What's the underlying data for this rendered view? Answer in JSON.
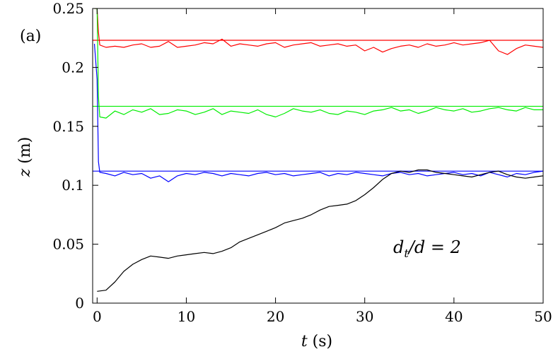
{
  "chart_data": {
    "type": "line",
    "title": "",
    "panel_label": "(a)",
    "xlabel": {
      "var": "t",
      "unit": " (s)"
    },
    "ylabel": {
      "var": "z",
      "unit": " (m)"
    },
    "xlim": [
      -0.5,
      50
    ],
    "ylim": [
      0,
      0.25
    ],
    "xticks": [
      0,
      10,
      20,
      30,
      40,
      50
    ],
    "xtick_labels": [
      "0",
      "10",
      "20",
      "30",
      "40",
      "50"
    ],
    "yticks": [
      0,
      0.05,
      0.1,
      0.15,
      0.2,
      0.25
    ],
    "ytick_labels": [
      "0",
      "0.05",
      "0.1",
      "0.15",
      "0.2",
      "0.25"
    ],
    "grid": false,
    "legend": "none",
    "annotation": {
      "d": "d",
      "sub": "t",
      "rest": "/d = 2"
    },
    "reference_lines": [
      {
        "color": "#ff0000",
        "y": 0.223
      },
      {
        "color": "#00ee00",
        "y": 0.167
      },
      {
        "color": "#0000ff",
        "y": 0.112
      }
    ],
    "series": [
      {
        "color": "#ff0000",
        "x": [
          -0.3,
          0,
          0.15,
          0.3,
          1,
          2,
          3,
          4,
          5,
          6,
          7,
          8,
          9,
          10,
          11,
          12,
          13,
          14,
          15,
          16,
          17,
          18,
          19,
          20,
          21,
          22,
          23,
          24,
          25,
          26,
          27,
          28,
          29,
          30,
          31,
          32,
          33,
          34,
          35,
          36,
          37,
          38,
          39,
          40,
          41,
          42,
          43,
          44,
          45,
          46,
          47,
          48,
          49,
          50
        ],
        "y": [
          0.25,
          0.25,
          0.23,
          0.219,
          0.217,
          0.218,
          0.217,
          0.219,
          0.22,
          0.217,
          0.218,
          0.222,
          0.217,
          0.218,
          0.219,
          0.221,
          0.22,
          0.224,
          0.218,
          0.22,
          0.219,
          0.218,
          0.22,
          0.221,
          0.217,
          0.219,
          0.22,
          0.221,
          0.218,
          0.219,
          0.22,
          0.218,
          0.219,
          0.214,
          0.217,
          0.213,
          0.216,
          0.218,
          0.219,
          0.217,
          0.22,
          0.218,
          0.219,
          0.221,
          0.219,
          0.22,
          0.221,
          0.223,
          0.214,
          0.211,
          0.216,
          0.219,
          0.218,
          0.217
        ]
      },
      {
        "color": "#00ee00",
        "x": [
          -0.3,
          0,
          0.15,
          0.3,
          1,
          2,
          3,
          4,
          5,
          6,
          7,
          8,
          9,
          10,
          11,
          12,
          13,
          14,
          15,
          16,
          17,
          18,
          19,
          20,
          21,
          22,
          23,
          24,
          25,
          26,
          27,
          28,
          29,
          30,
          31,
          32,
          33,
          34,
          35,
          36,
          37,
          38,
          39,
          40,
          41,
          42,
          43,
          44,
          45,
          46,
          47,
          48,
          49,
          50
        ],
        "y": [
          0.25,
          0.25,
          0.175,
          0.158,
          0.157,
          0.163,
          0.16,
          0.164,
          0.162,
          0.165,
          0.16,
          0.161,
          0.164,
          0.163,
          0.16,
          0.162,
          0.165,
          0.16,
          0.163,
          0.162,
          0.161,
          0.164,
          0.16,
          0.158,
          0.161,
          0.165,
          0.163,
          0.162,
          0.164,
          0.161,
          0.16,
          0.163,
          0.162,
          0.16,
          0.163,
          0.164,
          0.166,
          0.163,
          0.164,
          0.161,
          0.163,
          0.166,
          0.164,
          0.163,
          0.165,
          0.162,
          0.163,
          0.165,
          0.166,
          0.164,
          0.163,
          0.166,
          0.164,
          0.164
        ]
      },
      {
        "color": "#0000ff",
        "x": [
          -0.3,
          0,
          0.15,
          0.3,
          1,
          2,
          3,
          4,
          5,
          6,
          7,
          8,
          9,
          10,
          11,
          12,
          13,
          14,
          15,
          16,
          17,
          18,
          19,
          20,
          21,
          22,
          23,
          24,
          25,
          26,
          27,
          28,
          29,
          30,
          31,
          32,
          33,
          34,
          35,
          36,
          37,
          38,
          39,
          40,
          41,
          42,
          43,
          44,
          45,
          46,
          47,
          48,
          49,
          50
        ],
        "y": [
          0.22,
          0.19,
          0.12,
          0.111,
          0.11,
          0.108,
          0.111,
          0.109,
          0.11,
          0.106,
          0.108,
          0.103,
          0.108,
          0.11,
          0.109,
          0.111,
          0.11,
          0.108,
          0.11,
          0.109,
          0.108,
          0.11,
          0.111,
          0.109,
          0.11,
          0.108,
          0.109,
          0.11,
          0.111,
          0.108,
          0.11,
          0.109,
          0.111,
          0.11,
          0.109,
          0.108,
          0.11,
          0.111,
          0.109,
          0.11,
          0.108,
          0.109,
          0.11,
          0.111,
          0.109,
          0.11,
          0.108,
          0.111,
          0.109,
          0.107,
          0.11,
          0.109,
          0.111,
          0.112
        ]
      },
      {
        "color": "#000000",
        "x": [
          0,
          1,
          2,
          3,
          4,
          5,
          6,
          7,
          8,
          9,
          10,
          11,
          12,
          13,
          14,
          15,
          16,
          17,
          18,
          19,
          20,
          21,
          22,
          23,
          24,
          25,
          26,
          27,
          28,
          29,
          30,
          31,
          32,
          33,
          34,
          35,
          36,
          37,
          38,
          39,
          40,
          41,
          42,
          43,
          44,
          45,
          46,
          47,
          48,
          49,
          50
        ],
        "y": [
          0.01,
          0.011,
          0.018,
          0.027,
          0.033,
          0.037,
          0.04,
          0.039,
          0.038,
          0.04,
          0.041,
          0.042,
          0.043,
          0.042,
          0.044,
          0.047,
          0.052,
          0.055,
          0.058,
          0.061,
          0.064,
          0.068,
          0.07,
          0.072,
          0.075,
          0.079,
          0.082,
          0.083,
          0.084,
          0.087,
          0.092,
          0.098,
          0.105,
          0.11,
          0.112,
          0.111,
          0.113,
          0.113,
          0.111,
          0.11,
          0.109,
          0.108,
          0.107,
          0.109,
          0.111,
          0.112,
          0.109,
          0.107,
          0.106,
          0.107,
          0.108
        ]
      }
    ]
  }
}
